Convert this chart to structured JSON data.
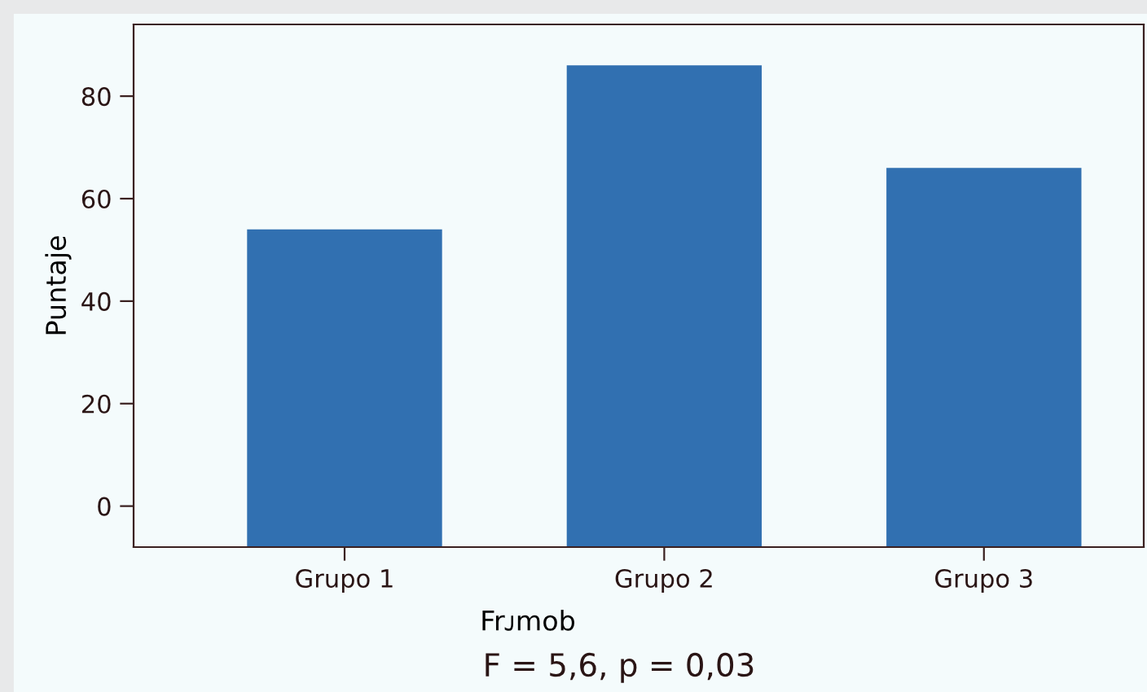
{
  "chart_data": {
    "type": "bar",
    "ylabel": "Puntaje",
    "xlabel": "Frᴊmob",
    "categories": [
      "Grupo 1",
      "Grupo 2",
      "Grupo 3"
    ],
    "values": [
      62,
      94,
      74
    ],
    "base": [
      -8,
      -8,
      -8
    ],
    "color": "#3170b1",
    "ylim": [
      -8,
      94
    ],
    "yticks": [
      0,
      20,
      40,
      60,
      80
    ],
    "grid": false,
    "annotations": [
      "F = 5,6, p = 0,03"
    ]
  }
}
